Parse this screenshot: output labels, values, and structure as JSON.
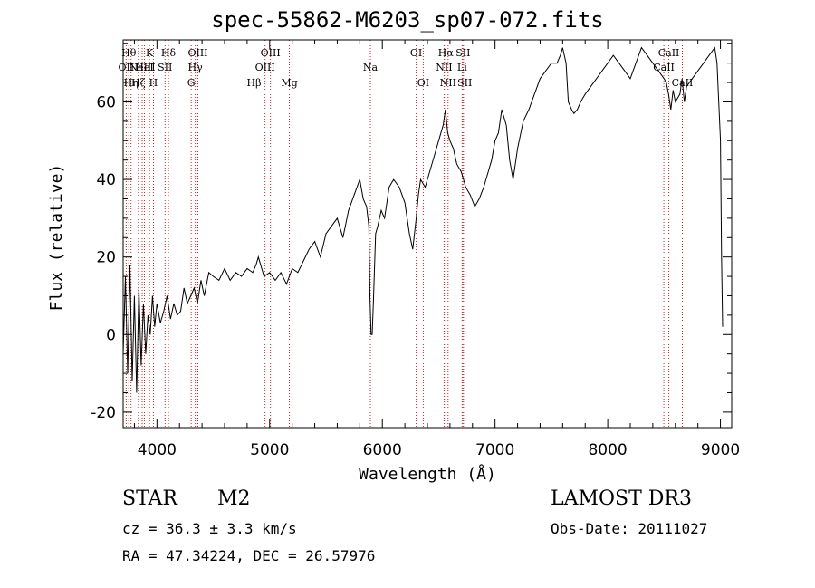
{
  "chart_data": {
    "type": "line",
    "title": "spec-55862-M6203_sp07-072.fits",
    "xlabel": "Wavelength (Å)",
    "ylabel": "Flux (relative)",
    "xlim": [
      3700,
      9100
    ],
    "ylim": [
      -24,
      76
    ],
    "xticks": [
      4000,
      5000,
      6000,
      7000,
      8000,
      9000
    ],
    "yticks": [
      -20,
      0,
      20,
      40,
      60
    ],
    "series": [
      {
        "name": "flux",
        "x": [
          3700,
          3720,
          3740,
          3760,
          3780,
          3800,
          3820,
          3840,
          3860,
          3880,
          3900,
          3920,
          3940,
          3960,
          3980,
          4000,
          4030,
          4060,
          4090,
          4120,
          4150,
          4180,
          4210,
          4240,
          4270,
          4300,
          4330,
          4360,
          4390,
          4420,
          4460,
          4500,
          4550,
          4600,
          4650,
          4700,
          4750,
          4800,
          4850,
          4880,
          4900,
          4950,
          5000,
          5050,
          5100,
          5150,
          5200,
          5250,
          5300,
          5350,
          5400,
          5450,
          5500,
          5550,
          5600,
          5650,
          5700,
          5750,
          5800,
          5830,
          5860,
          5880,
          5890,
          5900,
          5910,
          5920,
          5940,
          5960,
          5990,
          6020,
          6060,
          6100,
          6150,
          6200,
          6240,
          6270,
          6300,
          6320,
          6340,
          6380,
          6420,
          6460,
          6500,
          6540,
          6560,
          6580,
          6600,
          6630,
          6660,
          6700,
          6740,
          6780,
          6820,
          6860,
          6900,
          6940,
          6970,
          7000,
          7030,
          7060,
          7100,
          7130,
          7160,
          7200,
          7250,
          7300,
          7350,
          7400,
          7450,
          7500,
          7550,
          7580,
          7600,
          7630,
          7650,
          7680,
          7700,
          7730,
          7760,
          7800,
          7850,
          7900,
          7950,
          8000,
          8050,
          8100,
          8150,
          8200,
          8250,
          8300,
          8350,
          8400,
          8450,
          8500,
          8520,
          8540,
          8560,
          8580,
          8600,
          8640,
          8660,
          8680,
          8700,
          8750,
          8800,
          8850,
          8900,
          8950,
          8970,
          9000,
          9010,
          9020
        ],
        "y": [
          -5,
          15,
          -10,
          18,
          -12,
          10,
          -15,
          12,
          -8,
          8,
          -5,
          5,
          0,
          10,
          2,
          8,
          3,
          6,
          10,
          4,
          8,
          5,
          6,
          12,
          8,
          10,
          12,
          8,
          14,
          10,
          16,
          15,
          14,
          17,
          14,
          16,
          15,
          17,
          16,
          18,
          20,
          15,
          16,
          14,
          16,
          13,
          17,
          16,
          19,
          22,
          24,
          20,
          26,
          28,
          30,
          25,
          32,
          36,
          40,
          35,
          33,
          28,
          10,
          0,
          0,
          8,
          26,
          28,
          32,
          30,
          38,
          40,
          38,
          34,
          26,
          22,
          30,
          36,
          40,
          38,
          42,
          46,
          50,
          54,
          58,
          52,
          50,
          48,
          44,
          42,
          38,
          36,
          33,
          35,
          38,
          42,
          45,
          50,
          52,
          58,
          54,
          45,
          40,
          48,
          55,
          58,
          62,
          66,
          68,
          70,
          70,
          72,
          74,
          70,
          60,
          58,
          57,
          58,
          60,
          62,
          64,
          66,
          68,
          70,
          72,
          70,
          68,
          66,
          70,
          74,
          72,
          70,
          68,
          66,
          65,
          62,
          58,
          63,
          60,
          62,
          66,
          60,
          64,
          66,
          68,
          70,
          72,
          74,
          70,
          50,
          20,
          2
        ]
      }
    ],
    "lines": [
      {
        "wl": 3727,
        "label": "OII",
        "row": 2
      },
      {
        "wl": 3750,
        "label": "Hθ",
        "row": 1
      },
      {
        "wl": 3770,
        "label": "Hη",
        "row": 3
      },
      {
        "wl": 3835,
        "label": "Hζ",
        "row": 3
      },
      {
        "wl": 3869,
        "label": "NeIII",
        "row": 2
      },
      {
        "wl": 3889,
        "label": "HeI",
        "row": 2
      },
      {
        "wl": 3934,
        "label": "K",
        "row": 1
      },
      {
        "wl": 3969,
        "label": "H",
        "row": 3
      },
      {
        "wl": 4072,
        "label": "SII",
        "row": 2
      },
      {
        "wl": 4102,
        "label": "Hδ",
        "row": 1
      },
      {
        "wl": 4304,
        "label": "G",
        "row": 3
      },
      {
        "wl": 4340,
        "label": "Hγ",
        "row": 2
      },
      {
        "wl": 4363,
        "label": "OIII",
        "row": 1
      },
      {
        "wl": 4861,
        "label": "Hβ",
        "row": 3
      },
      {
        "wl": 4959,
        "label": "OIII",
        "row": 2
      },
      {
        "wl": 5007,
        "label": "OIII",
        "row": 1
      },
      {
        "wl": 5175,
        "label": "Mg",
        "row": 3
      },
      {
        "wl": 5894,
        "label": "Na",
        "row": 2
      },
      {
        "wl": 6300,
        "label": "OI",
        "row": 1
      },
      {
        "wl": 6363,
        "label": "OI",
        "row": 3
      },
      {
        "wl": 6548,
        "label": "NII",
        "row": 2
      },
      {
        "wl": 6563,
        "label": "Hα",
        "row": 1
      },
      {
        "wl": 6583,
        "label": "NII",
        "row": 3
      },
      {
        "wl": 6708,
        "label": "Li",
        "row": 2
      },
      {
        "wl": 6716,
        "label": "SII",
        "row": 1
      },
      {
        "wl": 6731,
        "label": "SII",
        "row": 3
      },
      {
        "wl": 8498,
        "label": "CaII",
        "row": 2
      },
      {
        "wl": 8542,
        "label": "CaII",
        "row": 1
      },
      {
        "wl": 8662,
        "label": "CaII",
        "row": 3
      }
    ]
  },
  "info": {
    "object_class": "STAR",
    "subclass": "M2",
    "survey": "LAMOST DR3",
    "redshift": "cz = 36.3 ± 3.3 km/s",
    "obs_date": "Obs-Date: 20111027",
    "coords": "RA =  47.34224, DEC =  26.57976"
  }
}
